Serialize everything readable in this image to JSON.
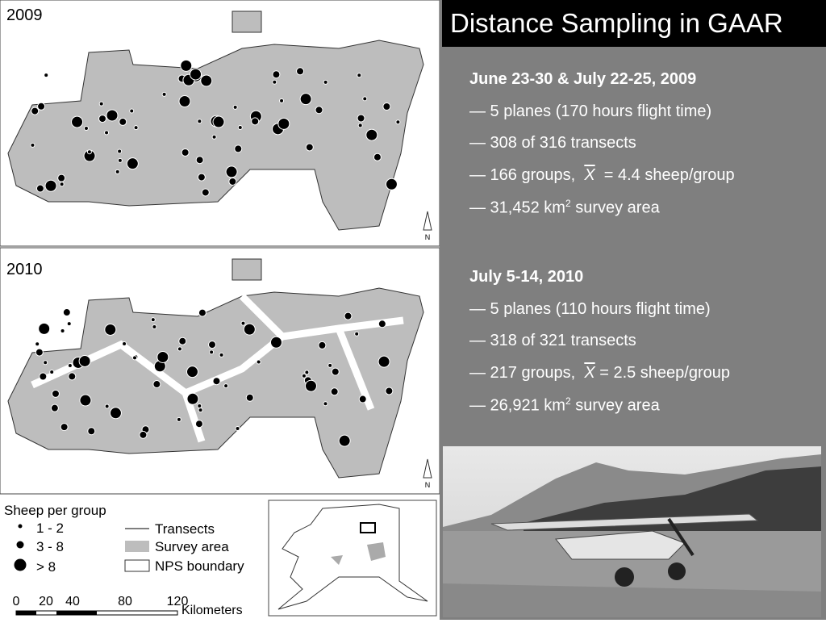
{
  "maps": [
    {
      "year": "2009",
      "north": "N"
    },
    {
      "year": "2010",
      "north": "N"
    }
  ],
  "legend": {
    "title": "Sheep per group",
    "sizes": [
      "1 - 2",
      "3 - 8",
      "> 8"
    ],
    "layers": [
      "Transects",
      "Survey area",
      "NPS boundary"
    ],
    "scale": {
      "ticks": [
        "0",
        "20",
        "40",
        "80",
        "120"
      ],
      "unit": "Kilometers"
    }
  },
  "slide": {
    "title": "Distance Sampling in GAAR",
    "blocks": [
      {
        "heading": "June 23-30 & July 22-25, 2009",
        "lines": [
          [
            {
              "t": "— 5 planes (170 hours flight time)"
            }
          ],
          [
            {
              "t": "— 308 of 316 transects"
            }
          ],
          [
            {
              "t": "— 166 groups,  "
            },
            {
              "bar": "X"
            },
            {
              "t": "  = 4.4 sheep/group"
            }
          ],
          [
            {
              "t": "— 31,452 km"
            },
            {
              "sup": "2"
            },
            {
              "t": " survey area"
            }
          ]
        ]
      },
      {
        "heading": "July 5-14, 2010",
        "lines": [
          [
            {
              "t": "— 5 planes (110 hours flight time)"
            }
          ],
          [
            {
              "t": "— 318 of 321 transects"
            }
          ],
          [
            {
              "t": "— 217 groups,  "
            },
            {
              "bar": "X"
            },
            {
              "t": " = 2.5 sheep/group"
            }
          ],
          [
            {
              "t": "— 26,921 km"
            },
            {
              "sup": "2"
            },
            {
              "t": " survey area"
            }
          ]
        ]
      }
    ]
  }
}
